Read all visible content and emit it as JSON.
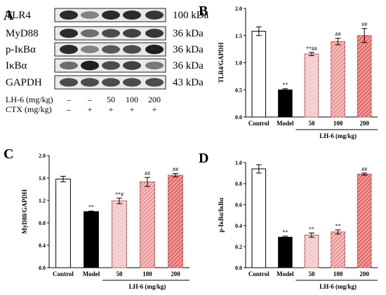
{
  "panel_letters": {
    "a": "A",
    "b": "B",
    "c": "C",
    "d": "D"
  },
  "blot": {
    "rows": [
      {
        "protein": "TLR4",
        "mw": "100 kDa",
        "intensities": [
          0.85,
          0.45,
          0.85,
          0.85,
          0.8
        ]
      },
      {
        "protein": "MyD88",
        "mw": "36 kDa",
        "intensities": [
          0.85,
          0.55,
          0.7,
          0.75,
          0.8
        ]
      },
      {
        "protein": "p-IκBα",
        "mw": "36 kDa",
        "intensities": [
          0.85,
          0.45,
          0.65,
          0.7,
          0.9
        ]
      },
      {
        "protein": "IκBα",
        "mw": "36 kDa",
        "intensities": [
          0.55,
          0.9,
          0.7,
          0.75,
          0.5
        ]
      },
      {
        "protein": "GAPDH",
        "mw": "43 kDa",
        "intensities": [
          0.7,
          0.7,
          0.7,
          0.7,
          0.7
        ]
      }
    ],
    "lh6_label": "LH-6 (mg/kg)",
    "lh6_values": [
      "–",
      "–",
      "50",
      "100",
      "200"
    ],
    "ctx_label": "CTX (mg/kg)",
    "ctx_values": [
      "–",
      "+",
      "+",
      "+",
      "+"
    ]
  },
  "chart_data": [
    {
      "panel": "B",
      "type": "bar",
      "categories": [
        "Control",
        "Model",
        "50",
        "100",
        "200"
      ],
      "values": [
        1.58,
        0.5,
        1.16,
        1.39,
        1.5
      ],
      "errors": [
        0.08,
        0.02,
        0.03,
        0.06,
        0.13
      ],
      "annotations": [
        "",
        "**",
        "**##",
        "##",
        "##"
      ],
      "ylabel": "TLR4/GAPDH",
      "ylim": [
        0,
        2.0
      ],
      "yticks": [
        "0.0",
        "0.5",
        "1.0",
        "1.5",
        "2.0"
      ],
      "ytick_values": [
        0,
        0.5,
        1.0,
        1.5,
        2.0
      ],
      "group_label": "LH-6 (mg/kg)"
    },
    {
      "panel": "C",
      "type": "bar",
      "categories": [
        "Control",
        "Model",
        "50",
        "100",
        "200"
      ],
      "values": [
        1.58,
        1.0,
        1.19,
        1.53,
        1.65
      ],
      "errors": [
        0.05,
        0.01,
        0.05,
        0.08,
        0.03
      ],
      "annotations": [
        "",
        "**",
        "**#",
        "##",
        "##"
      ],
      "ylabel": "MyD88/GAPDH",
      "ylim": [
        0,
        2.0
      ],
      "yticks": [
        "0.0",
        "0.4",
        "0.8",
        "1.2",
        "1.6",
        "2.0"
      ],
      "ytick_values": [
        0,
        0.4,
        0.8,
        1.2,
        1.6,
        2.0
      ],
      "group_label": "LH-6 (mg/kg)"
    },
    {
      "panel": "D",
      "type": "bar",
      "categories": [
        "Control",
        "Model",
        "50",
        "100",
        "200"
      ],
      "values": [
        0.94,
        0.29,
        0.31,
        0.34,
        0.89
      ],
      "errors": [
        0.04,
        0.01,
        0.02,
        0.02,
        0.01
      ],
      "annotations": [
        "",
        "**",
        "**",
        "**",
        "##"
      ],
      "ylabel": "p-IκBα/IκBα",
      "ylim": [
        0,
        1.0
      ],
      "yticks": [
        "0.0",
        "0.2",
        "0.4",
        "0.6",
        "0.8",
        "1.0"
      ],
      "ytick_values": [
        0,
        0.2,
        0.4,
        0.6,
        0.8,
        1.0
      ],
      "group_label": "LH-6 (mg/kg)"
    }
  ],
  "bar_styles": [
    {
      "fill": "#ffffff",
      "stroke": "#000000",
      "pattern": "none"
    },
    {
      "fill": "#000000",
      "stroke": "#000000",
      "pattern": "none"
    },
    {
      "fill": "#f4c6c6",
      "stroke": "#c04a4a",
      "pattern": "hatch"
    },
    {
      "fill": "#ee9a9a",
      "stroke": "#c04a4a",
      "pattern": "hatch"
    },
    {
      "fill": "#e76a6a",
      "stroke": "#c04a4a",
      "pattern": "hatch"
    }
  ]
}
